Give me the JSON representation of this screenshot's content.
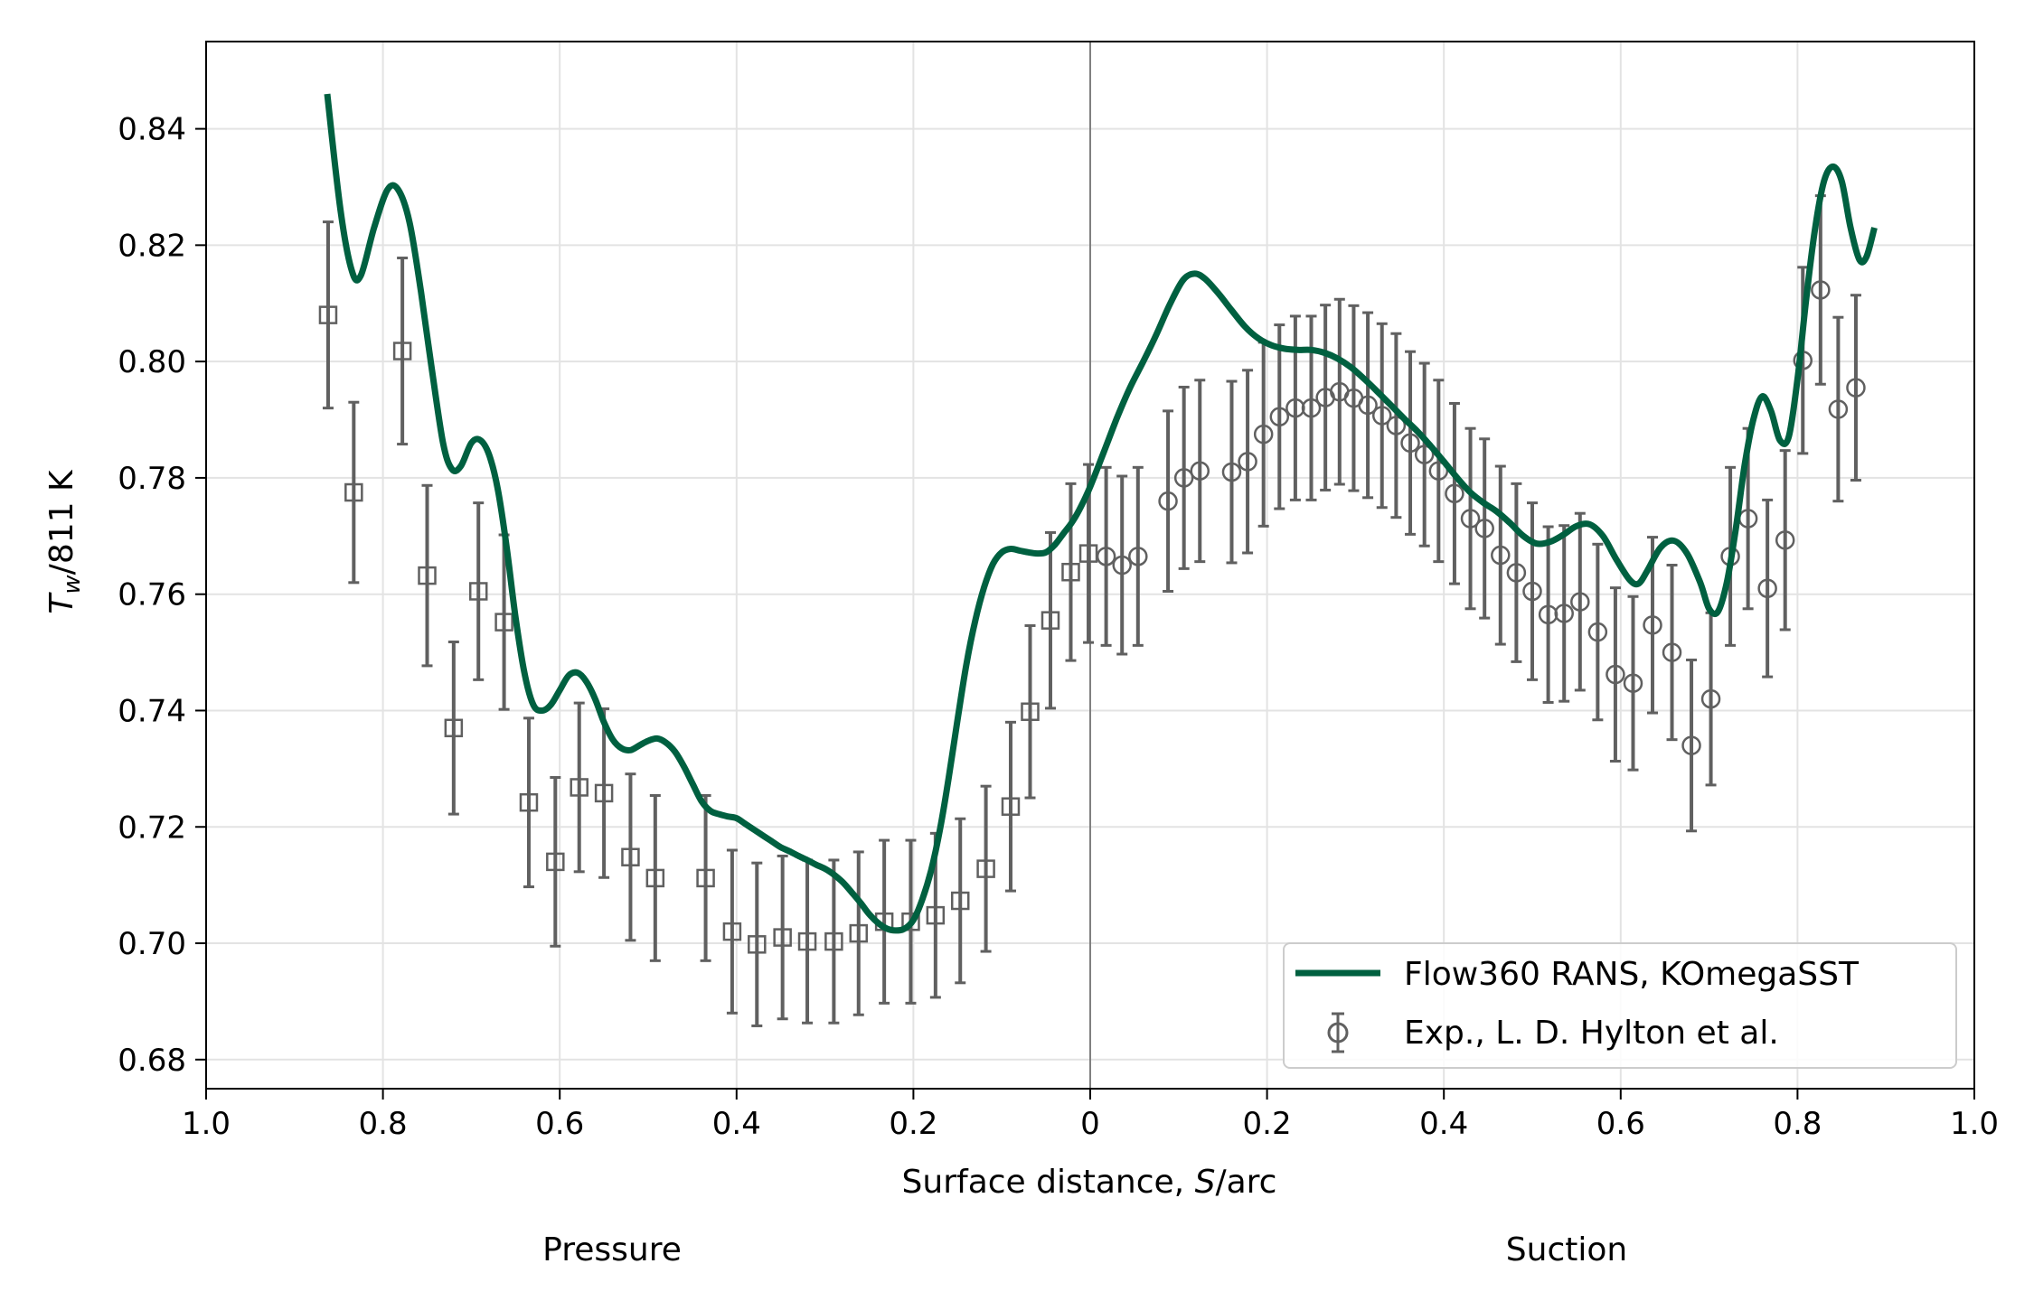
{
  "chart_data": {
    "type": "line",
    "xlabel_prefix": "Surface distance, ",
    "xlabel_italic": "S",
    "xlabel_suffix": "/arc",
    "ylabel_main": "T",
    "ylabel_sub": "w",
    "ylabel_suffix": "/811 K",
    "x_tick_labels": [
      "1.0",
      "0.8",
      "0.6",
      "0.4",
      "0.2",
      "0",
      "0.2",
      "0.4",
      "0.6",
      "0.8",
      "1.0"
    ],
    "x_tick_values": [
      -1.0,
      -0.8,
      -0.6,
      -0.4,
      -0.2,
      0,
      0.2,
      0.4,
      0.6,
      0.8,
      1.0
    ],
    "y_ticks": [
      0.68,
      0.7,
      0.72,
      0.74,
      0.76,
      0.78,
      0.8,
      0.82,
      0.84
    ],
    "xlim": [
      -1.0,
      1.0
    ],
    "ylim": [
      0.675,
      0.855
    ],
    "grid": true,
    "legend_position": "lower-right",
    "side_labels": {
      "pressure": "Pressure",
      "suction": "Suction"
    },
    "series": [
      {
        "name": "Flow360 RANS, KOmegaSST",
        "kind": "line",
        "color": "#006040",
        "points": [
          [
            -0.863,
            0.846
          ],
          [
            -0.848,
            0.826
          ],
          [
            -0.835,
            0.8155
          ],
          [
            -0.825,
            0.8148
          ],
          [
            -0.81,
            0.823
          ],
          [
            -0.795,
            0.8295
          ],
          [
            -0.783,
            0.8296
          ],
          [
            -0.77,
            0.824
          ],
          [
            -0.757,
            0.812
          ],
          [
            -0.745,
            0.799
          ],
          [
            -0.732,
            0.786
          ],
          [
            -0.722,
            0.7815
          ],
          [
            -0.712,
            0.782
          ],
          [
            -0.7,
            0.786
          ],
          [
            -0.69,
            0.7865
          ],
          [
            -0.68,
            0.784
          ],
          [
            -0.67,
            0.778
          ],
          [
            -0.66,
            0.768
          ],
          [
            -0.65,
            0.756
          ],
          [
            -0.64,
            0.7465
          ],
          [
            -0.63,
            0.741
          ],
          [
            -0.62,
            0.74
          ],
          [
            -0.61,
            0.741
          ],
          [
            -0.6,
            0.7435
          ],
          [
            -0.59,
            0.746
          ],
          [
            -0.58,
            0.7465
          ],
          [
            -0.57,
            0.745
          ],
          [
            -0.56,
            0.742
          ],
          [
            -0.55,
            0.738
          ],
          [
            -0.54,
            0.735
          ],
          [
            -0.53,
            0.7335
          ],
          [
            -0.52,
            0.7332
          ],
          [
            -0.51,
            0.734
          ],
          [
            -0.5,
            0.7348
          ],
          [
            -0.49,
            0.7352
          ],
          [
            -0.48,
            0.7345
          ],
          [
            -0.47,
            0.733
          ],
          [
            -0.46,
            0.7305
          ],
          [
            -0.45,
            0.7275
          ],
          [
            -0.44,
            0.7245
          ],
          [
            -0.43,
            0.7228
          ],
          [
            -0.42,
            0.7222
          ],
          [
            -0.41,
            0.7218
          ],
          [
            -0.4,
            0.7215
          ],
          [
            -0.39,
            0.7205
          ],
          [
            -0.38,
            0.7195
          ],
          [
            -0.37,
            0.7185
          ],
          [
            -0.36,
            0.7175
          ],
          [
            -0.35,
            0.7165
          ],
          [
            -0.34,
            0.7158
          ],
          [
            -0.33,
            0.715
          ],
          [
            -0.32,
            0.7143
          ],
          [
            -0.31,
            0.7135
          ],
          [
            -0.3,
            0.7128
          ],
          [
            -0.29,
            0.7118
          ],
          [
            -0.28,
            0.7105
          ],
          [
            -0.27,
            0.7088
          ],
          [
            -0.26,
            0.707
          ],
          [
            -0.25,
            0.705
          ],
          [
            -0.24,
            0.7035
          ],
          [
            -0.23,
            0.7025
          ],
          [
            -0.22,
            0.7022
          ],
          [
            -0.21,
            0.7025
          ],
          [
            -0.2,
            0.704
          ],
          [
            -0.19,
            0.7075
          ],
          [
            -0.18,
            0.7125
          ],
          [
            -0.17,
            0.7195
          ],
          [
            -0.16,
            0.7285
          ],
          [
            -0.15,
            0.7385
          ],
          [
            -0.14,
            0.748
          ],
          [
            -0.13,
            0.7555
          ],
          [
            -0.12,
            0.7612
          ],
          [
            -0.11,
            0.7652
          ],
          [
            -0.1,
            0.7672
          ],
          [
            -0.09,
            0.7678
          ],
          [
            -0.08,
            0.7675
          ],
          [
            -0.07,
            0.7672
          ],
          [
            -0.06,
            0.767
          ],
          [
            -0.05,
            0.7672
          ],
          [
            -0.04,
            0.7685
          ],
          [
            -0.03,
            0.7705
          ],
          [
            -0.02,
            0.7725
          ],
          [
            -0.01,
            0.7752
          ],
          [
            0.0,
            0.7785
          ],
          [
            0.015,
            0.7843
          ],
          [
            0.03,
            0.7902
          ],
          [
            0.045,
            0.7955
          ],
          [
            0.06,
            0.8
          ],
          [
            0.075,
            0.8047
          ],
          [
            0.09,
            0.8098
          ],
          [
            0.105,
            0.814
          ],
          [
            0.118,
            0.8151
          ],
          [
            0.13,
            0.8142
          ],
          [
            0.145,
            0.8117
          ],
          [
            0.16,
            0.8088
          ],
          [
            0.175,
            0.806
          ],
          [
            0.19,
            0.804
          ],
          [
            0.205,
            0.8028
          ],
          [
            0.22,
            0.8022
          ],
          [
            0.235,
            0.802
          ],
          [
            0.25,
            0.802
          ],
          [
            0.265,
            0.8015
          ],
          [
            0.28,
            0.8005
          ],
          [
            0.295,
            0.799
          ],
          [
            0.31,
            0.797
          ],
          [
            0.325,
            0.7948
          ],
          [
            0.34,
            0.7925
          ],
          [
            0.355,
            0.7902
          ],
          [
            0.37,
            0.788
          ],
          [
            0.385,
            0.7855
          ],
          [
            0.4,
            0.7828
          ],
          [
            0.415,
            0.78
          ],
          [
            0.43,
            0.7775
          ],
          [
            0.445,
            0.7757
          ],
          [
            0.46,
            0.7742
          ],
          [
            0.475,
            0.7722
          ],
          [
            0.49,
            0.77
          ],
          [
            0.505,
            0.7687
          ],
          [
            0.52,
            0.769
          ],
          [
            0.535,
            0.7702
          ],
          [
            0.55,
            0.7717
          ],
          [
            0.565,
            0.772
          ],
          [
            0.58,
            0.77
          ],
          [
            0.595,
            0.766
          ],
          [
            0.61,
            0.7625
          ],
          [
            0.62,
            0.7618
          ],
          [
            0.63,
            0.764
          ],
          [
            0.645,
            0.768
          ],
          [
            0.66,
            0.7692
          ],
          [
            0.675,
            0.767
          ],
          [
            0.69,
            0.762
          ],
          [
            0.7,
            0.7575
          ],
          [
            0.71,
            0.757
          ],
          [
            0.72,
            0.762
          ],
          [
            0.73,
            0.771
          ],
          [
            0.74,
            0.782
          ],
          [
            0.75,
            0.79
          ],
          [
            0.76,
            0.794
          ],
          [
            0.77,
            0.7915
          ],
          [
            0.78,
            0.7865
          ],
          [
            0.79,
            0.787
          ],
          [
            0.8,
            0.797
          ],
          [
            0.81,
            0.811
          ],
          [
            0.82,
            0.823
          ],
          [
            0.83,
            0.831
          ],
          [
            0.84,
            0.8335
          ],
          [
            0.85,
            0.831
          ],
          [
            0.86,
            0.823
          ],
          [
            0.87,
            0.8175
          ],
          [
            0.878,
            0.818
          ],
          [
            0.887,
            0.823
          ]
        ]
      },
      {
        "name": "Exp., L. D. Hylton et al.",
        "kind": "errorbar",
        "color": "#606060",
        "pressure_points": [
          [
            -0.862,
            0.808,
            0.016
          ],
          [
            -0.833,
            0.7775,
            0.0155
          ],
          [
            -0.778,
            0.8018,
            0.016
          ],
          [
            -0.75,
            0.7632,
            0.0155
          ],
          [
            -0.72,
            0.737,
            0.0148
          ],
          [
            -0.692,
            0.7605,
            0.0152
          ],
          [
            -0.663,
            0.7552,
            0.015
          ],
          [
            -0.635,
            0.7242,
            0.0145
          ],
          [
            -0.605,
            0.714,
            0.0145
          ],
          [
            -0.578,
            0.7268,
            0.0145
          ],
          [
            -0.55,
            0.7258,
            0.0145
          ],
          [
            -0.52,
            0.7148,
            0.0143
          ],
          [
            -0.492,
            0.7112,
            0.0142
          ],
          [
            -0.435,
            0.7112,
            0.0142
          ],
          [
            -0.405,
            0.702,
            0.014
          ],
          [
            -0.377,
            0.6998,
            0.014
          ],
          [
            -0.348,
            0.701,
            0.014
          ],
          [
            -0.32,
            0.7003,
            0.014
          ],
          [
            -0.29,
            0.7003,
            0.014
          ],
          [
            -0.262,
            0.7017,
            0.014
          ],
          [
            -0.233,
            0.7037,
            0.014
          ],
          [
            -0.203,
            0.7037,
            0.014
          ],
          [
            -0.175,
            0.7048,
            0.0141
          ],
          [
            -0.147,
            0.7073,
            0.0141
          ],
          [
            -0.118,
            0.7128,
            0.0142
          ],
          [
            -0.09,
            0.7235,
            0.0145
          ],
          [
            -0.068,
            0.7398,
            0.0148
          ],
          [
            -0.045,
            0.7555,
            0.0151
          ],
          [
            -0.022,
            0.7638,
            0.0152
          ],
          [
            -0.002,
            0.767,
            0.0153
          ]
        ],
        "suction_points": [
          [
            0.018,
            0.7665,
            0.0153
          ],
          [
            0.036,
            0.765,
            0.0153
          ],
          [
            0.054,
            0.7665,
            0.0153
          ],
          [
            0.088,
            0.776,
            0.0155
          ],
          [
            0.106,
            0.78,
            0.0156
          ],
          [
            0.124,
            0.7812,
            0.0156
          ],
          [
            0.16,
            0.781,
            0.0156
          ],
          [
            0.178,
            0.7828,
            0.0157
          ],
          [
            0.196,
            0.7875,
            0.0158
          ],
          [
            0.214,
            0.7905,
            0.0158
          ],
          [
            0.232,
            0.792,
            0.0158
          ],
          [
            0.25,
            0.792,
            0.0158
          ],
          [
            0.266,
            0.7938,
            0.0159
          ],
          [
            0.282,
            0.7948,
            0.0159
          ],
          [
            0.298,
            0.7937,
            0.0159
          ],
          [
            0.314,
            0.7925,
            0.0159
          ],
          [
            0.33,
            0.7907,
            0.0158
          ],
          [
            0.346,
            0.789,
            0.0158
          ],
          [
            0.362,
            0.786,
            0.0157
          ],
          [
            0.378,
            0.784,
            0.0157
          ],
          [
            0.394,
            0.7812,
            0.0156
          ],
          [
            0.412,
            0.7773,
            0.0155
          ],
          [
            0.43,
            0.773,
            0.0155
          ],
          [
            0.446,
            0.7713,
            0.0154
          ],
          [
            0.464,
            0.7667,
            0.0153
          ],
          [
            0.482,
            0.7637,
            0.0153
          ],
          [
            0.5,
            0.7605,
            0.0152
          ],
          [
            0.518,
            0.7565,
            0.0151
          ],
          [
            0.536,
            0.7567,
            0.0151
          ],
          [
            0.554,
            0.7587,
            0.0152
          ],
          [
            0.574,
            0.7535,
            0.0151
          ],
          [
            0.594,
            0.7462,
            0.0149
          ],
          [
            0.614,
            0.7447,
            0.0149
          ],
          [
            0.636,
            0.7547,
            0.0151
          ],
          [
            0.658,
            0.75,
            0.015
          ],
          [
            0.68,
            0.734,
            0.0147
          ],
          [
            0.702,
            0.742,
            0.0148
          ],
          [
            0.724,
            0.7665,
            0.0153
          ],
          [
            0.744,
            0.773,
            0.0155
          ],
          [
            0.766,
            0.761,
            0.0152
          ],
          [
            0.786,
            0.7693,
            0.0154
          ],
          [
            0.806,
            0.8002,
            0.016
          ],
          [
            0.826,
            0.8123,
            0.0162
          ],
          [
            0.846,
            0.7918,
            0.0158
          ],
          [
            0.866,
            0.7955,
            0.0159
          ]
        ]
      }
    ]
  }
}
